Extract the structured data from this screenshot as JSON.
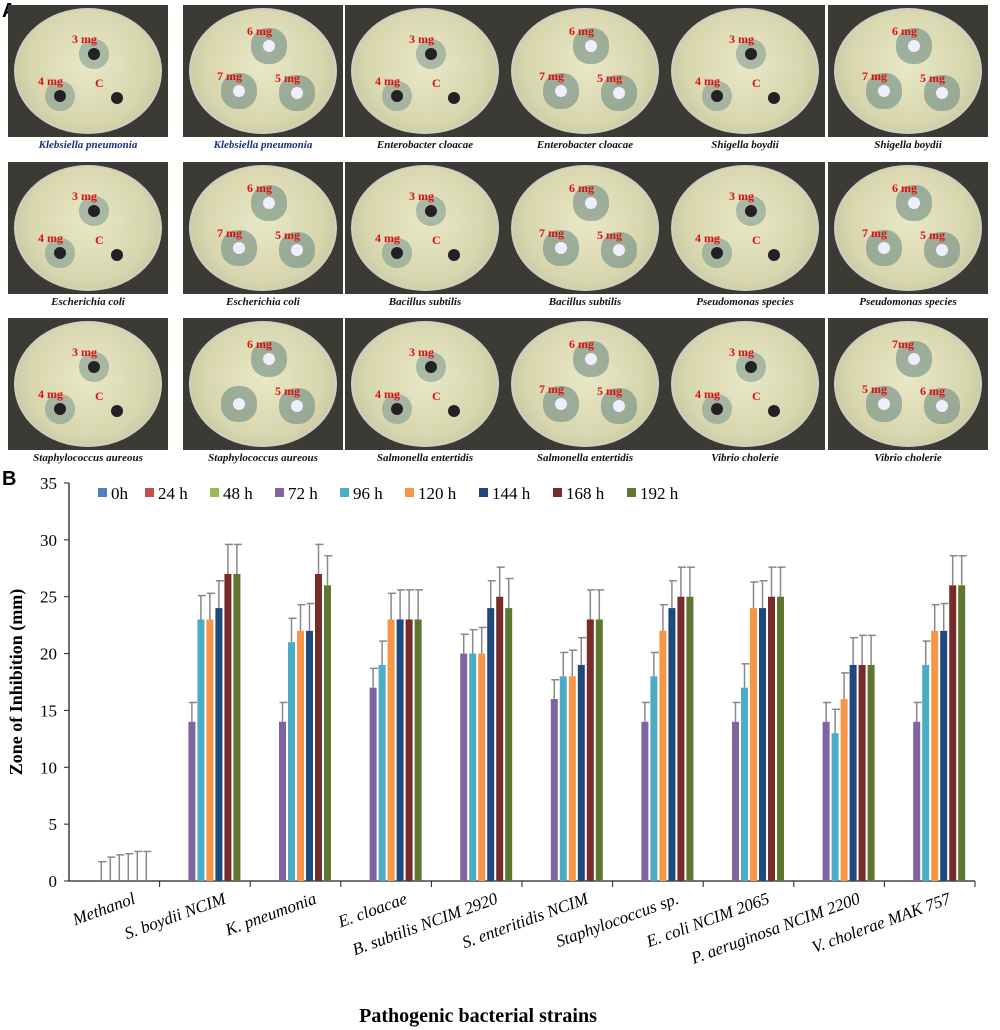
{
  "panel_a": {
    "letter": "A",
    "plates": [
      {
        "caption": "Klebsiella pneumonia",
        "labels": [
          "3 mg",
          "4 mg",
          "C"
        ],
        "kind": "low",
        "blue": true
      },
      {
        "caption": "Klebsiella pneumonia",
        "labels": [
          "6 mg",
          "7 mg",
          "5 mg"
        ],
        "kind": "high",
        "blue": true
      },
      {
        "caption": "Enterobacter cloacae",
        "labels": [
          "3 mg",
          "4 mg",
          "C"
        ],
        "kind": "low"
      },
      {
        "caption": "Enterobacter cloacae",
        "labels": [
          "6 mg",
          "7 mg",
          "5 mg"
        ],
        "kind": "high"
      },
      {
        "caption": "Shigella boydii",
        "labels": [
          "3 mg",
          "4 mg",
          "C"
        ],
        "kind": "low"
      },
      {
        "caption": "Shigella boydii",
        "labels": [
          "6 mg",
          "7 mg",
          "5 mg"
        ],
        "kind": "high"
      },
      {
        "caption": "Escherichia coli",
        "labels": [
          "3 mg",
          "4 mg",
          "C"
        ],
        "kind": "low"
      },
      {
        "caption": "Escherichia coli",
        "labels": [
          "6 mg",
          "7 mg",
          "5 mg"
        ],
        "kind": "high"
      },
      {
        "caption": "Bacillus subtilis",
        "labels": [
          "3 mg",
          "4 mg",
          "C"
        ],
        "kind": "low"
      },
      {
        "caption": "Bacillus subtilis",
        "labels": [
          "6 mg",
          "7 mg",
          "5 mg"
        ],
        "kind": "high"
      },
      {
        "caption": "Pseudomonas species",
        "labels": [
          "3 mg",
          "4 mg",
          "C"
        ],
        "kind": "low"
      },
      {
        "caption": "Pseudomonas species",
        "labels": [
          "6 mg",
          "7 mg",
          "5 mg"
        ],
        "kind": "high"
      },
      {
        "caption": "Staphylococcus aureous",
        "labels": [
          "3 mg",
          "4 mg",
          "C"
        ],
        "kind": "low"
      },
      {
        "caption": "Staphylococcus aureous",
        "labels": [
          "6 mg",
          "",
          "5 mg"
        ],
        "kind": "high"
      },
      {
        "caption": "Salmonella entertidis",
        "labels": [
          "3 mg",
          "4 mg",
          "C"
        ],
        "kind": "low"
      },
      {
        "caption": "Salmonella entertidis",
        "labels": [
          "6 mg",
          "7 mg",
          "5 mg"
        ],
        "kind": "high"
      },
      {
        "caption": "Vibrio cholerie",
        "labels": [
          "3 mg",
          "4 mg",
          "C"
        ],
        "kind": "low"
      },
      {
        "caption": "Vibrio cholerie",
        "labels": [
          "7mg",
          "5 mg",
          "6 mg"
        ],
        "kind": "high"
      }
    ]
  },
  "chart_data": {
    "panel_letter": "B",
    "type": "bar",
    "xlabel": "Pathogenic bacterial strains",
    "ylabel": "Zone of Inhibition (mm)",
    "ylim": [
      0,
      35
    ],
    "yticks": [
      0,
      5,
      10,
      15,
      20,
      25,
      30,
      35
    ],
    "legend_position": "top",
    "categories": [
      "Methanol",
      "S. boydii NCIM",
      "K. pneumonia",
      "E. cloacae",
      "B. subtilis  NCIM 2920",
      "S. enteritidis  NCIM",
      "Staphylococcus sp.",
      "E. coli  NCIM 2065",
      "P. aeruginosa  NCIM 2200",
      "V. cholerae  MAK 757"
    ],
    "series": [
      {
        "name": "0h",
        "color": "#4f81bd",
        "values": [
          0,
          0,
          0,
          0,
          0,
          0,
          0,
          0,
          0,
          0
        ],
        "errors": [
          0,
          0,
          0,
          0,
          0,
          0,
          0,
          0,
          0,
          0
        ]
      },
      {
        "name": "24 h",
        "color": "#c0504d",
        "values": [
          0,
          0,
          0,
          0,
          0,
          0,
          0,
          0,
          0,
          0
        ],
        "errors": [
          0,
          0,
          0,
          0,
          0,
          0,
          0,
          0,
          0,
          0
        ]
      },
      {
        "name": "48 h",
        "color": "#9bbb59",
        "values": [
          0,
          0,
          0,
          0,
          0,
          0,
          0,
          0,
          0,
          0
        ],
        "errors": [
          0,
          0,
          0,
          0,
          0,
          0,
          0,
          0,
          0,
          0
        ]
      },
      {
        "name": "72 h",
        "color": "#8064a2",
        "values": [
          0,
          14,
          14,
          17,
          20,
          16,
          14,
          14,
          14,
          14
        ],
        "errors": [
          1.7,
          1.7,
          1.7,
          1.7,
          1.7,
          1.7,
          1.7,
          1.7,
          1.7,
          1.7
        ]
      },
      {
        "name": "96 h",
        "color": "#4bacc6",
        "values": [
          0,
          23,
          21,
          19,
          20,
          18,
          18,
          17,
          13,
          19
        ],
        "errors": [
          2.1,
          2.1,
          2.1,
          2.1,
          2.1,
          2.1,
          2.1,
          2.1,
          2.1,
          2.1
        ]
      },
      {
        "name": "120 h",
        "color": "#f79646",
        "values": [
          0,
          23,
          22,
          23,
          20,
          18,
          22,
          24,
          16,
          22
        ],
        "errors": [
          2.3,
          2.3,
          2.3,
          2.3,
          2.3,
          2.3,
          2.3,
          2.3,
          2.3,
          2.3
        ]
      },
      {
        "name": "144 h",
        "color": "#1f497d",
        "values": [
          0,
          24,
          22,
          23,
          24,
          19,
          24,
          24,
          19,
          22
        ],
        "errors": [
          2.4,
          2.4,
          2.4,
          2.6,
          2.4,
          2.4,
          2.4,
          2.4,
          2.4,
          2.4
        ]
      },
      {
        "name": "168 h",
        "color": "#772c2a",
        "values": [
          0,
          27,
          27,
          23,
          25,
          23,
          25,
          25,
          19,
          26
        ],
        "errors": [
          2.6,
          2.6,
          2.6,
          2.6,
          2.6,
          2.6,
          2.6,
          2.6,
          2.6,
          2.6
        ]
      },
      {
        "name": "192 h",
        "color": "#5f7530",
        "values": [
          0,
          27,
          26,
          23,
          24,
          23,
          25,
          25,
          19,
          26
        ],
        "errors": [
          2.6,
          2.6,
          2.6,
          2.6,
          2.6,
          2.6,
          2.6,
          2.6,
          2.6,
          2.6
        ]
      }
    ]
  }
}
